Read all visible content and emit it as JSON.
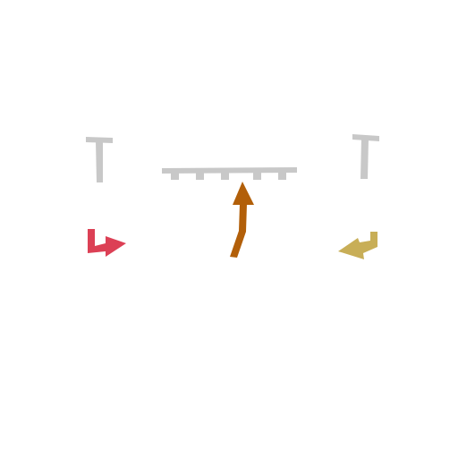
{
  "scene": {
    "background": "#ffffff",
    "barrier_color": "#c8c8c8",
    "left_marker": {
      "icon": "t-post-icon"
    },
    "right_marker": {
      "icon": "t-post-icon"
    },
    "center_barrier": {
      "icon": "fence-icon",
      "segments": 5
    },
    "left_arrow": {
      "icon": "turn-right-arrow-icon",
      "color": "#dc4055"
    },
    "center_arrow": {
      "icon": "up-arrow-icon",
      "color": "#b25f09"
    },
    "right_arrow": {
      "icon": "turn-left-arrow-icon",
      "color": "#c8ae57"
    }
  }
}
